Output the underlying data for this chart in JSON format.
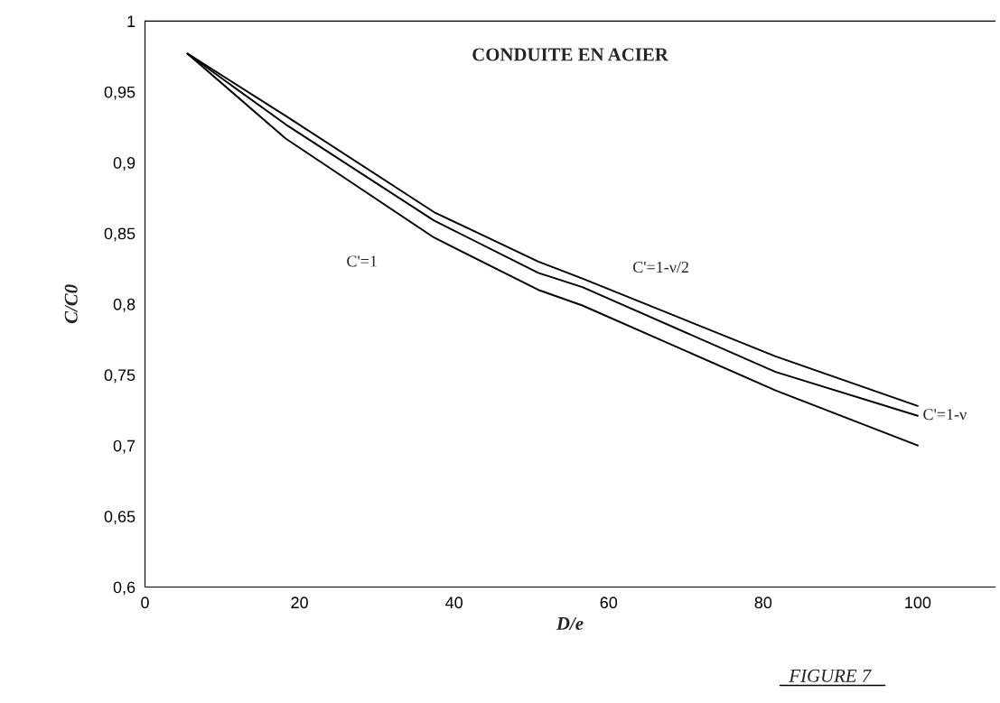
{
  "chart_data": {
    "type": "line",
    "title": "CONDUITE EN ACIER",
    "xlabel": "D/e",
    "ylabel": "C/C0",
    "annotations": [
      "FIGURE 7"
    ],
    "xlim": [
      0,
      110
    ],
    "ylim": [
      0.6,
      1
    ],
    "xticks": [
      0,
      20,
      40,
      60,
      80,
      100
    ],
    "yticks": [
      {
        "value": 0.6,
        "label": "0,6"
      },
      {
        "value": 0.65,
        "label": "0,65"
      },
      {
        "value": 0.7,
        "label": "0,7"
      },
      {
        "value": 0.75,
        "label": "0,75"
      },
      {
        "value": 0.8,
        "label": "0,8"
      },
      {
        "value": 0.85,
        "label": "0,85"
      },
      {
        "value": 0.9,
        "label": "0,9"
      },
      {
        "value": 0.95,
        "label": "0,95"
      },
      {
        "value": 1,
        "label": "1"
      }
    ],
    "grid": false,
    "legend": false,
    "line_style": "solid",
    "marker": "none",
    "x": [
      5.5,
      18.2,
      37.4,
      50.9,
      56.6,
      81.6,
      100
    ],
    "series": [
      {
        "name": "C'=1",
        "color": "#000000",
        "values": [
          0.977,
          0.917,
          0.847,
          0.81,
          0.799,
          0.739,
          0.7
        ]
      },
      {
        "name": "C'=1-ν",
        "color": "#000000",
        "values": [
          0.977,
          0.927,
          0.859,
          0.822,
          0.812,
          0.752,
          0.721
        ]
      },
      {
        "name": "C'=1-ν/2",
        "color": "#000000",
        "values": [
          0.977,
          0.933,
          0.865,
          0.83,
          0.818,
          0.763,
          0.728
        ]
      }
    ]
  }
}
